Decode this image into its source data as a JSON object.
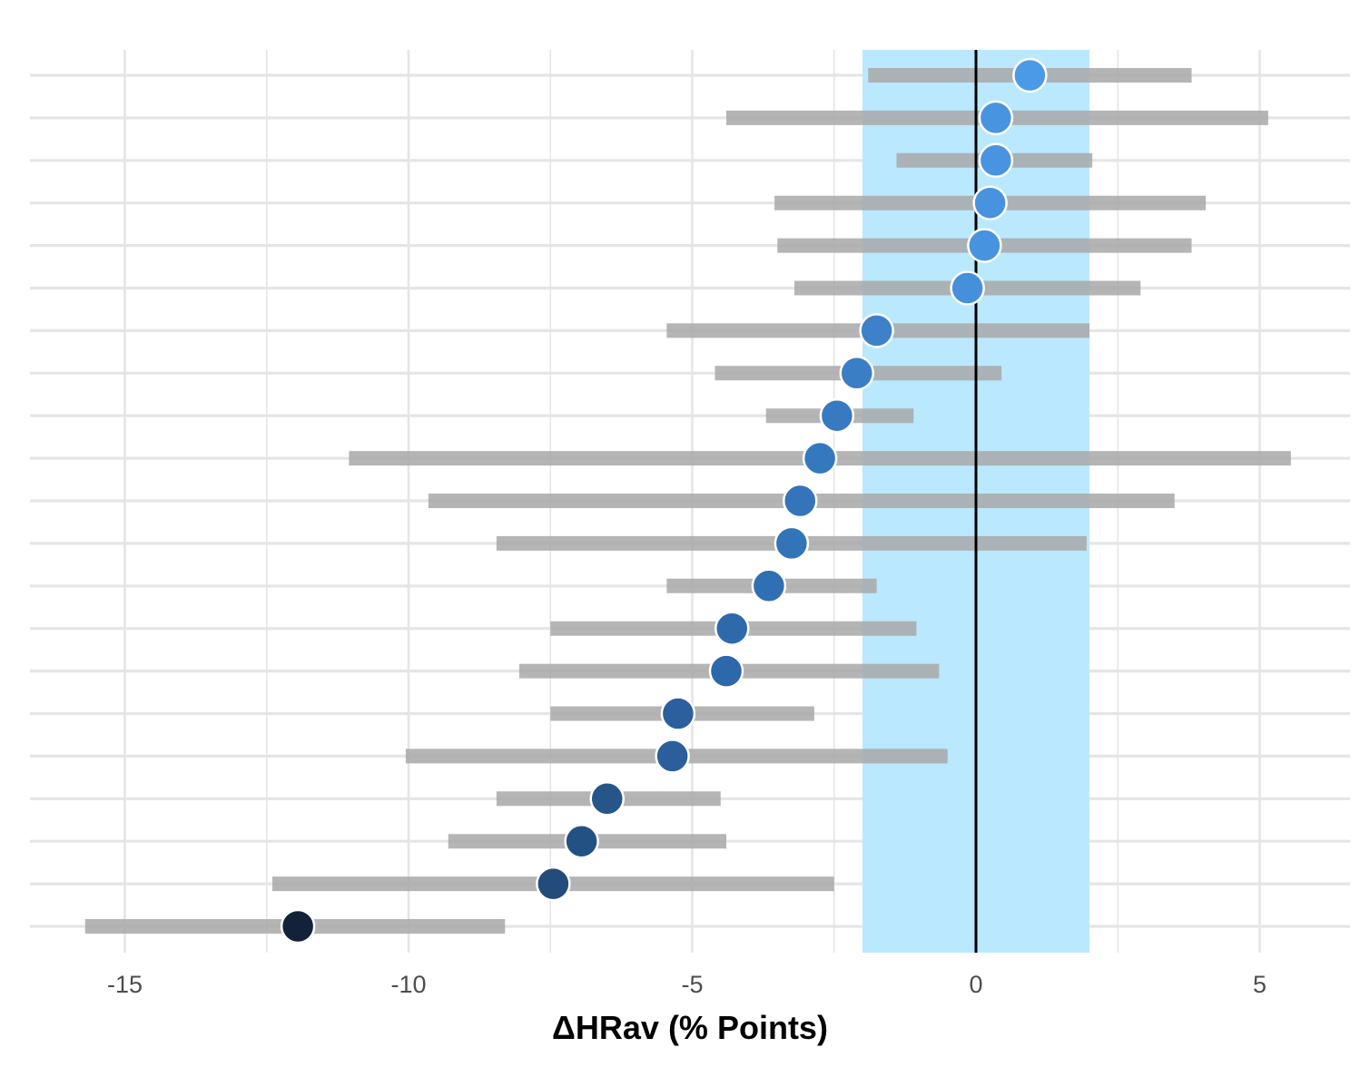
{
  "chart_data": {
    "type": "scatter",
    "subtype": "dot-and-interval (forest) plot",
    "xlabel": "ΔHRav (% Points)",
    "ylabel": "",
    "title": "",
    "xlim": [
      -16.7,
      6.6
    ],
    "xticks": [
      -15,
      -10,
      -5,
      0,
      5
    ],
    "xtick_labels": [
      "-15",
      "-10",
      "-5",
      "0",
      "5"
    ],
    "reference_line_x": 0,
    "equivalence_band": [
      -2,
      2
    ],
    "grid": true,
    "legend": "none",
    "colors": {
      "band": "#bae8fe",
      "interval": "#a8a8a8",
      "grid": "#e5e5e5",
      "reference_line": "#000000",
      "point_low": "#132238",
      "point_mid": "#2e6aad",
      "point_high": "#4b9ae8"
    },
    "rows": [
      {
        "estimate": 0.95,
        "low": -1.9,
        "high": 3.8
      },
      {
        "estimate": 0.35,
        "low": -4.4,
        "high": 5.15
      },
      {
        "estimate": 0.35,
        "low": -1.4,
        "high": 2.05
      },
      {
        "estimate": 0.25,
        "low": -3.55,
        "high": 4.05
      },
      {
        "estimate": 0.15,
        "low": -3.5,
        "high": 3.8
      },
      {
        "estimate": -0.15,
        "low": -3.2,
        "high": 2.9
      },
      {
        "estimate": -1.75,
        "low": -5.45,
        "high": 2.0
      },
      {
        "estimate": -2.1,
        "low": -4.6,
        "high": 0.45
      },
      {
        "estimate": -2.45,
        "low": -3.7,
        "high": -1.1
      },
      {
        "estimate": -2.75,
        "low": -11.05,
        "high": 5.55
      },
      {
        "estimate": -3.1,
        "low": -9.65,
        "high": 3.5
      },
      {
        "estimate": -3.25,
        "low": -8.45,
        "high": 1.95
      },
      {
        "estimate": -3.65,
        "low": -5.45,
        "high": -1.75
      },
      {
        "estimate": -4.3,
        "low": -7.5,
        "high": -1.05
      },
      {
        "estimate": -4.4,
        "low": -8.05,
        "high": -0.65
      },
      {
        "estimate": -5.25,
        "low": -7.5,
        "high": -2.85
      },
      {
        "estimate": -5.35,
        "low": -10.05,
        "high": -0.5
      },
      {
        "estimate": -6.5,
        "low": -8.45,
        "high": -4.5
      },
      {
        "estimate": -6.95,
        "low": -9.3,
        "high": -4.4
      },
      {
        "estimate": -7.45,
        "low": -12.4,
        "high": -2.5
      },
      {
        "estimate": -11.95,
        "low": -15.7,
        "high": -8.3
      }
    ]
  }
}
